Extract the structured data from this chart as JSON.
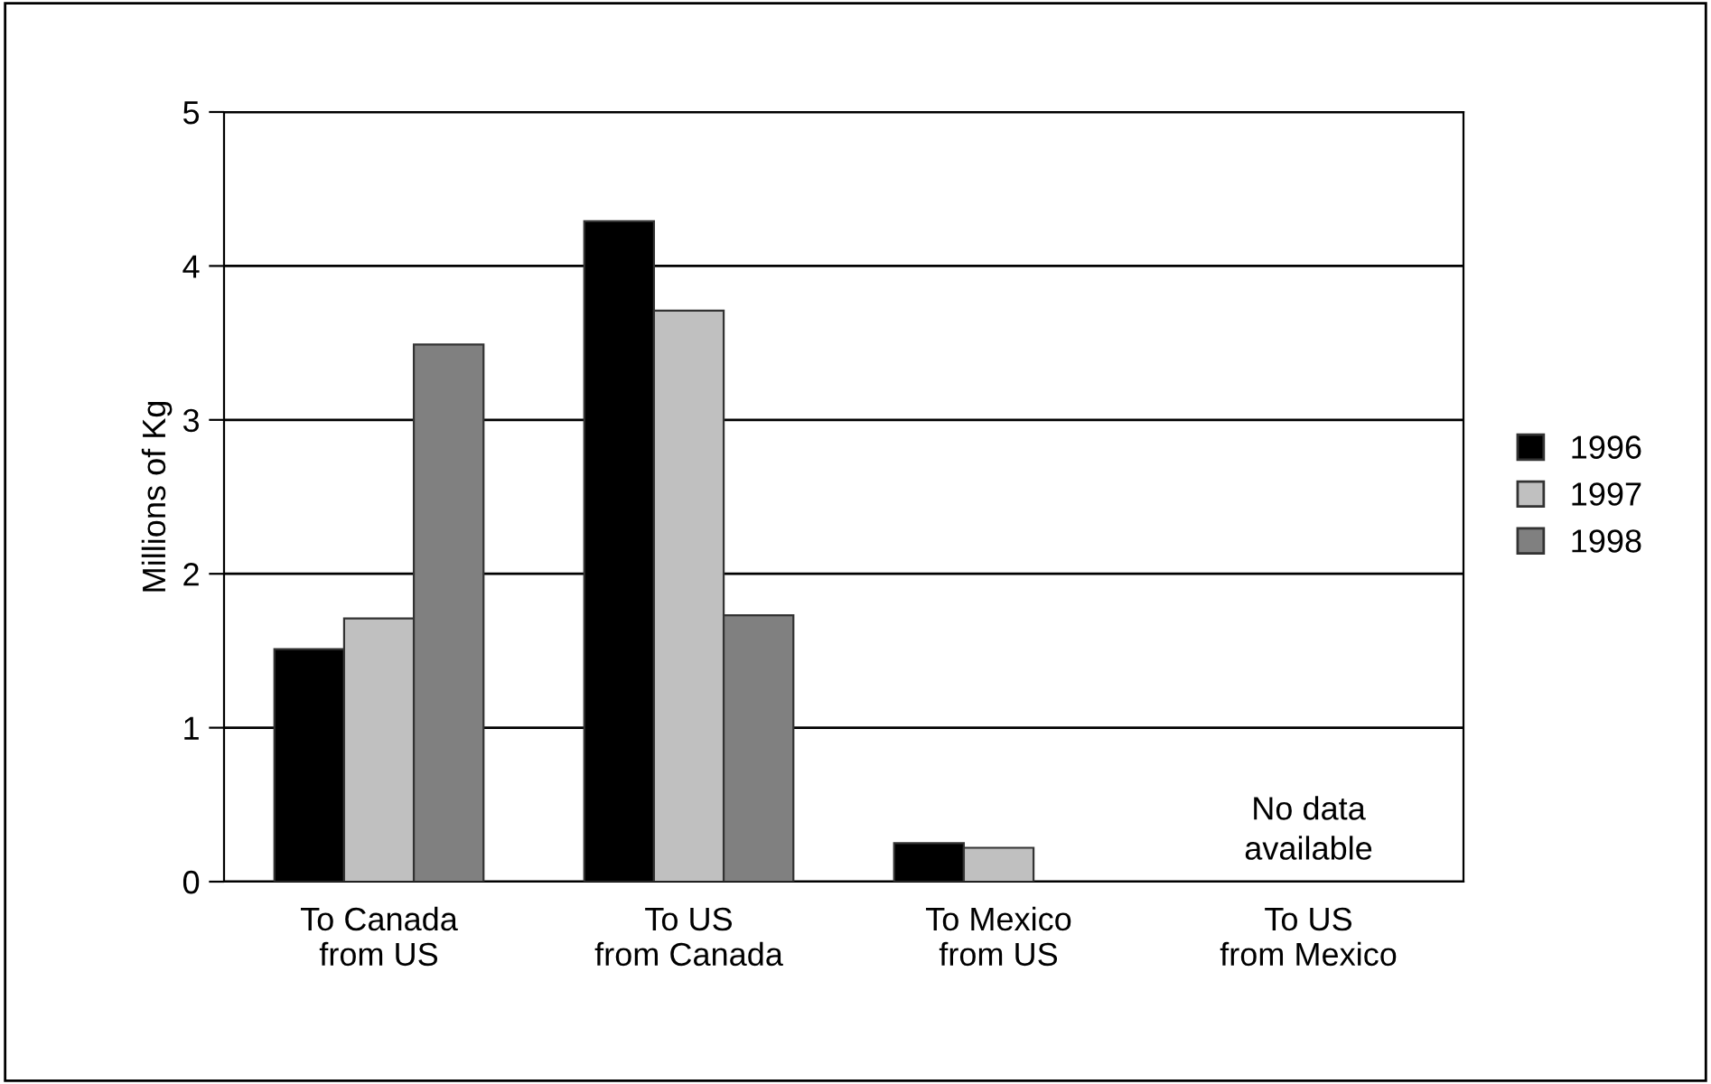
{
  "chart_data": {
    "type": "bar",
    "ylabel": "Millions of Kg",
    "categories": [
      "To Canada\nfrom US",
      "To US\nfrom Canada",
      "To Mexico\nfrom US",
      "To US\nfrom Mexico"
    ],
    "series": [
      {
        "name": "1996",
        "color": "#000000",
        "values": [
          1.51,
          4.29,
          0.25,
          null
        ]
      },
      {
        "name": "1997",
        "color": "#c0c0c0",
        "values": [
          1.71,
          3.71,
          0.22,
          null
        ]
      },
      {
        "name": "1998",
        "color": "#808080",
        "values": [
          3.49,
          1.73,
          null,
          null
        ]
      }
    ],
    "annotations": [
      "No data\navailable"
    ],
    "ylim": [
      0,
      5
    ],
    "yticks": [
      0,
      1,
      2,
      3,
      4,
      5
    ],
    "grid": "y",
    "legend": "right"
  }
}
